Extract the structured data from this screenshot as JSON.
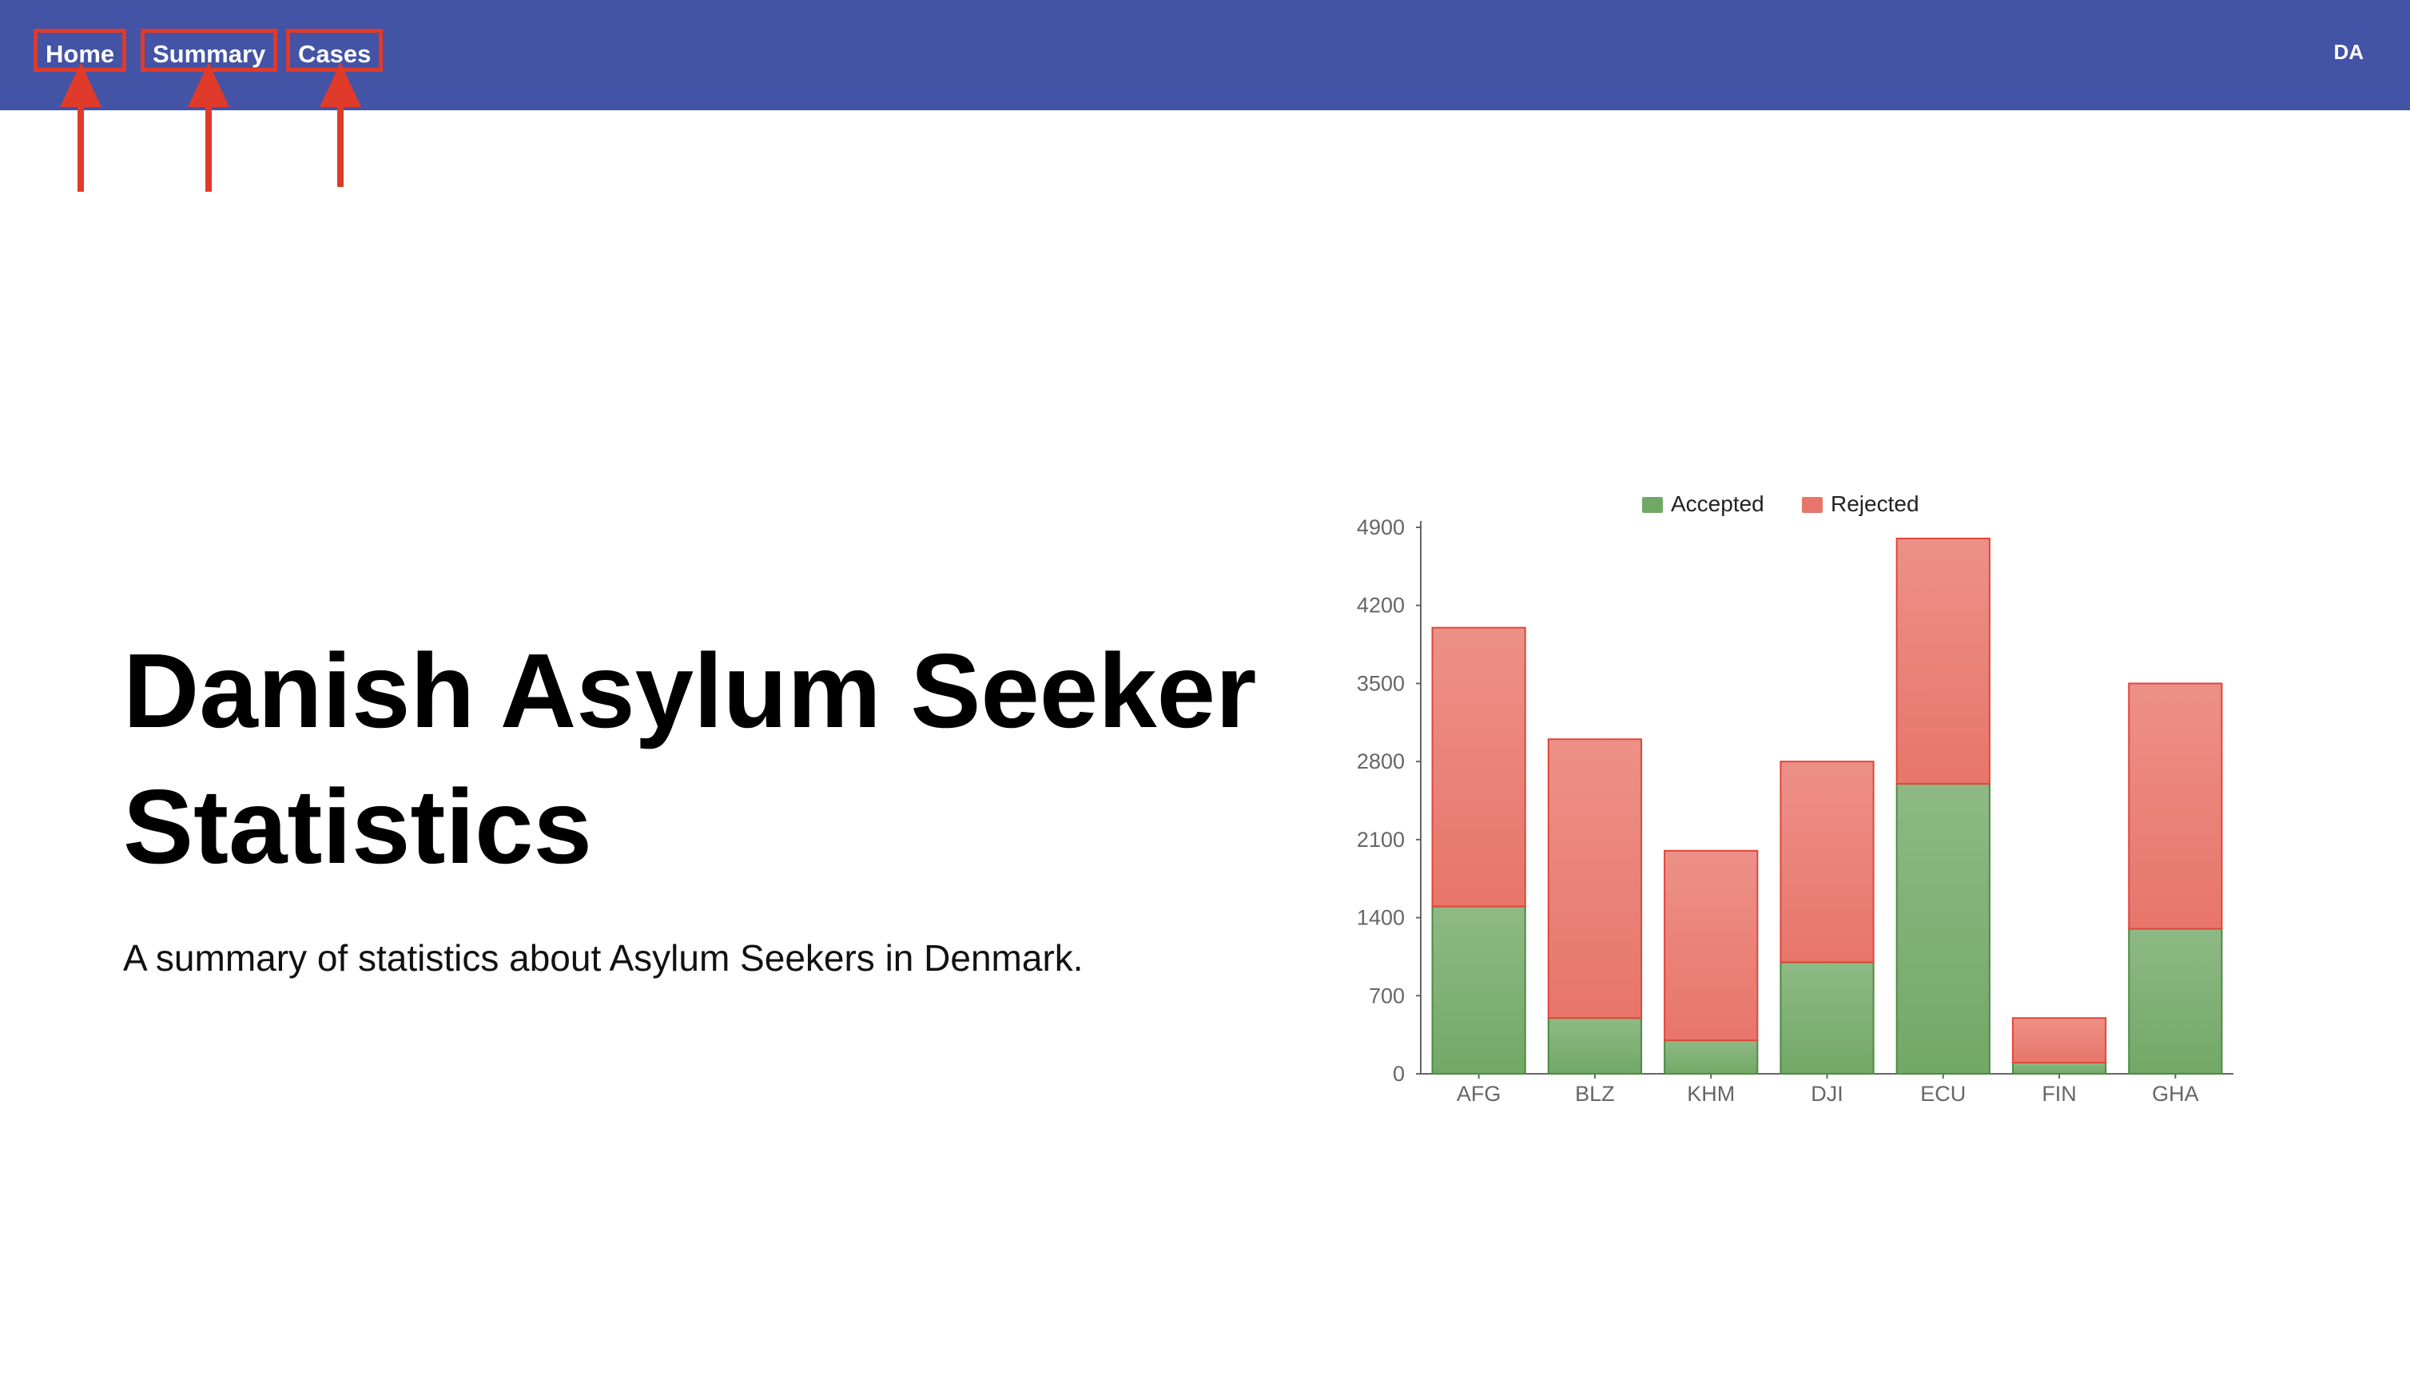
{
  "nav": {
    "links": [
      {
        "label": "Home"
      },
      {
        "label": "Summary"
      },
      {
        "label": "Cases"
      }
    ],
    "language": "DA"
  },
  "hero": {
    "title": "Danish Asylum Seeker Statistics",
    "subtitle": "A summary of statistics about Asylum Seekers in Denmark."
  },
  "colors": {
    "navbar": "#4353a6",
    "accepted": "#72a866",
    "rejected": "#e8756a",
    "annotation": "#e03a2a"
  },
  "chart_data": {
    "type": "bar",
    "stacked": true,
    "categories": [
      "AFG",
      "BLZ",
      "KHM",
      "DJI",
      "ECU",
      "FIN",
      "GHA"
    ],
    "series": [
      {
        "name": "Accepted",
        "color": "#72a866",
        "values": [
          1500,
          500,
          300,
          1000,
          2600,
          100,
          1300
        ]
      },
      {
        "name": "Rejected",
        "color": "#e8756a",
        "values": [
          2500,
          2500,
          1700,
          1800,
          2200,
          400,
          2200
        ]
      }
    ],
    "yticks": [
      0,
      700,
      1400,
      2100,
      2800,
      3500,
      4200,
      4900
    ],
    "ylim": [
      0,
      4900
    ],
    "legend": "top-center",
    "grid": false
  }
}
